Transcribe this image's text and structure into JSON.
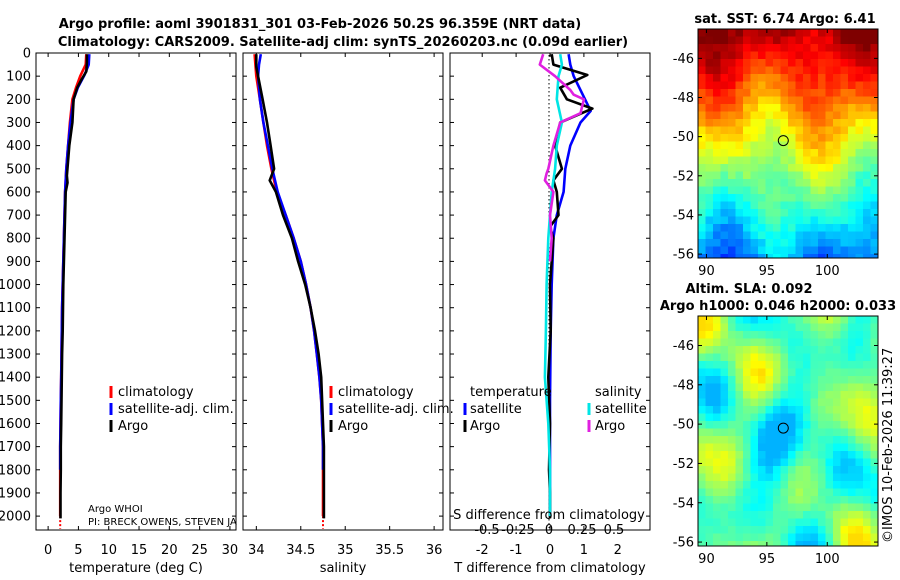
{
  "title": {
    "line1": "Argo profile: aoml 3901831_301 03-Feb-2026 50.2S 96.359E (NRT data)",
    "line2": "Climatology: CARS2009. Satellite-adj clim: synTS_20260203.nc (0.09d earlier)"
  },
  "credit": "©IMOS 10-Feb-2026 11:39:27",
  "colors": {
    "climatology": "#ff0000",
    "satellite_adj": "#0000ff",
    "argo": "#000000",
    "sat_salinity": "#00e5e5",
    "argo_salinity": "#e020e0"
  },
  "chart_data": [
    {
      "id": "temperature",
      "type": "line",
      "xlabel": "temperature (deg C)",
      "ylabel": "",
      "xlim": [
        -2,
        31
      ],
      "ylim": [
        2060,
        0
      ],
      "xticks": [
        0,
        5,
        10,
        15,
        20,
        25,
        30
      ],
      "xtick_labels": [
        "0",
        "5",
        "10",
        "15",
        "20",
        "25",
        "30"
      ],
      "yticks": [
        0,
        100,
        200,
        300,
        400,
        500,
        600,
        700,
        800,
        900,
        1000,
        1100,
        1200,
        1300,
        1400,
        1500,
        1600,
        1700,
        1800,
        1900,
        2000
      ],
      "ytick_labels": [
        "0",
        "100",
        "200",
        "300",
        "400",
        "500",
        "600",
        "700",
        "800",
        "900",
        "1000",
        "1100",
        "1200",
        "1300",
        "1400",
        "1500",
        "1600",
        "1700",
        "1800",
        "1900",
        "2000"
      ],
      "legend": [
        "climatology",
        "satellite-adj. clim.",
        "Argo"
      ],
      "annotation": [
        "Argo WHOI",
        "PI: BRECK OWENS, STEVEN JA"
      ],
      "series": [
        {
          "name": "climatology",
          "color": "#ff0000",
          "dashed": false,
          "x": [
            6.3,
            6.2,
            5.3,
            4.6,
            4.0,
            3.6,
            3.3,
            3.0,
            2.8,
            2.7,
            2.6,
            2.5,
            2.4,
            2.3,
            2.25,
            2.2,
            2.15,
            2.1,
            2.05,
            2.0,
            2.0,
            2.0,
            2.0
          ],
          "y": [
            5,
            50,
            100,
            150,
            200,
            300,
            400,
            500,
            600,
            700,
            800,
            900,
            1000,
            1100,
            1200,
            1300,
            1400,
            1500,
            1600,
            1700,
            1800,
            1900,
            2000
          ]
        },
        {
          "name": "climatology (lower)",
          "color": "#ff0000",
          "dashed": true,
          "x": [
            2.0,
            2.0
          ],
          "y": [
            2000,
            2055
          ]
        },
        {
          "name": "satellite-adj. clim.",
          "color": "#0000ff",
          "dashed": false,
          "x": [
            6.8,
            6.7,
            6.0,
            4.9,
            4.2,
            3.7,
            3.3,
            3.0,
            2.8,
            2.7,
            2.6,
            2.5,
            2.4,
            2.3,
            2.25,
            2.2,
            2.15,
            2.1,
            2.05,
            2.0,
            2.0
          ],
          "y": [
            5,
            50,
            95,
            150,
            200,
            300,
            400,
            500,
            600,
            700,
            800,
            900,
            1000,
            1100,
            1200,
            1300,
            1400,
            1500,
            1600,
            1700,
            1800
          ]
        },
        {
          "name": "Argo",
          "color": "#000000",
          "dashed": false,
          "x": [
            6.4,
            6.4,
            6.3,
            5.6,
            4.8,
            4.2,
            4.0,
            3.5,
            3.1,
            3.2,
            2.9,
            2.8,
            2.7,
            2.6,
            2.5,
            2.45,
            2.4,
            2.3,
            2.25,
            2.2,
            2.15,
            2.1,
            2.1,
            2.05,
            2.05,
            2.05
          ],
          "y": [
            5,
            40,
            80,
            110,
            150,
            200,
            300,
            400,
            530,
            560,
            600,
            700,
            800,
            900,
            1000,
            1100,
            1200,
            1300,
            1400,
            1500,
            1600,
            1700,
            1800,
            1900,
            2000,
            2010
          ]
        }
      ]
    },
    {
      "id": "salinity",
      "type": "line",
      "xlabel": "salinity",
      "xlim": [
        33.85,
        36.1
      ],
      "ylim": [
        2060,
        0
      ],
      "xticks": [
        34,
        34.5,
        35,
        35.5,
        36
      ],
      "xtick_labels": [
        "34",
        "34.5",
        "35",
        "35.5",
        "36"
      ],
      "legend": [
        "climatology",
        "satellite-adj. clim.",
        "Argo"
      ],
      "series": [
        {
          "name": "climatology",
          "color": "#ff0000",
          "dashed": false,
          "x": [
            33.98,
            33.99,
            34.0,
            34.04,
            34.08,
            34.12,
            34.17,
            34.23,
            34.33,
            34.42,
            34.5,
            34.56,
            34.61,
            34.65,
            34.68,
            34.71,
            34.73,
            34.74,
            34.75,
            34.75,
            34.75,
            34.75
          ],
          "y": [
            5,
            50,
            100,
            200,
            300,
            400,
            500,
            600,
            700,
            800,
            900,
            1000,
            1100,
            1200,
            1300,
            1400,
            1500,
            1600,
            1700,
            1800,
            1900,
            2000
          ]
        },
        {
          "name": "climatology (lower)",
          "color": "#ff0000",
          "dashed": true,
          "x": [
            34.75,
            34.75
          ],
          "y": [
            2000,
            2055
          ]
        },
        {
          "name": "satellite-adj. clim.",
          "color": "#0000ff",
          "dashed": false,
          "x": [
            34.05,
            34.03,
            34.02,
            34.04,
            34.08,
            34.13,
            34.18,
            34.24,
            34.33,
            34.42,
            34.5,
            34.56,
            34.61,
            34.65,
            34.68,
            34.71,
            34.73,
            34.74,
            34.75,
            34.75
          ],
          "y": [
            5,
            50,
            100,
            200,
            300,
            400,
            500,
            600,
            700,
            800,
            900,
            1000,
            1100,
            1200,
            1300,
            1400,
            1500,
            1600,
            1700,
            1800
          ]
        },
        {
          "name": "Argo",
          "color": "#000000",
          "dashed": false,
          "x": [
            34.0,
            34.0,
            34.02,
            34.07,
            34.12,
            34.16,
            34.2,
            34.15,
            34.22,
            34.3,
            34.4,
            34.47,
            34.55,
            34.61,
            34.66,
            34.7,
            34.73,
            34.74,
            34.75,
            34.76,
            34.76,
            34.76
          ],
          "y": [
            5,
            60,
            100,
            200,
            300,
            400,
            500,
            550,
            600,
            700,
            800,
            900,
            1000,
            1100,
            1200,
            1300,
            1400,
            1500,
            1600,
            1700,
            1900,
            2010
          ]
        }
      ]
    },
    {
      "id": "difference",
      "type": "line",
      "xlabel": "T difference from climatology",
      "top_xlabel": "S difference from climatology",
      "xlim": [
        -2.95,
        2.95
      ],
      "ylim": [
        2060,
        0
      ],
      "xticks": [
        -2,
        -1,
        0,
        1,
        2
      ],
      "xtick_labels": [
        "-2",
        "-1",
        "0",
        "1",
        "2"
      ],
      "top_xtick_labels": [
        "-0.5",
        "-0.25",
        "0",
        "0.25",
        "0.5"
      ],
      "s_scale": 0.25,
      "legend_groups": [
        {
          "title": "temperature",
          "items": [
            "satellite",
            "Argo"
          ]
        },
        {
          "title": "salinity",
          "items": [
            "satellite",
            "Argo"
          ]
        }
      ],
      "series": [
        {
          "name": "T satellite",
          "color": "#0000ff",
          "dashed": false,
          "x": [
            0.55,
            0.6,
            0.7,
            1.2,
            0.9,
            0.6,
            0.45,
            0.4,
            0.2,
            0.1,
            0.05,
            0.02,
            0.0,
            0.0,
            0.0
          ],
          "y": [
            5,
            50,
            100,
            250,
            300,
            400,
            500,
            600,
            700,
            800,
            1000,
            1200,
            1500,
            1800,
            2000
          ]
        },
        {
          "name": "T Argo",
          "color": "#000000",
          "dashed": false,
          "x": [
            0.05,
            0.1,
            1.1,
            0.3,
            0.5,
            1.25,
            0.3,
            0.15,
            0.35,
            0.1,
            0.2,
            0.25,
            0.0,
            0.1,
            0.05,
            0.0,
            0.02,
            -0.05,
            0.0,
            -0.03,
            0.0,
            0.0
          ],
          "y": [
            5,
            50,
            95,
            150,
            200,
            240,
            300,
            400,
            500,
            550,
            600,
            700,
            750,
            800,
            900,
            1000,
            1200,
            1400,
            1600,
            1800,
            1900,
            2010
          ]
        },
        {
          "name": "S satellite",
          "color": "#00e5e5",
          "dashed": false,
          "x": [
            0.3,
            0.35,
            0.25,
            0.2,
            0.35,
            0.2,
            0.15,
            0.05,
            0.0,
            -0.05,
            -0.1,
            -0.12,
            -0.15,
            -0.1,
            -0.05,
            0.0,
            0.0
          ],
          "y": [
            5,
            50,
            100,
            200,
            300,
            400,
            500,
            600,
            700,
            800,
            1000,
            1200,
            1400,
            1500,
            1600,
            1800,
            2000
          ]
        },
        {
          "name": "S Argo",
          "color": "#e020e0",
          "dashed": false,
          "x": [
            -0.2,
            -0.3,
            0.15,
            0.6,
            0.7,
            1.0,
            0.9,
            0.3,
            0.1,
            -0.05,
            -0.1,
            -0.15,
            0.1,
            0.0,
            0.05,
            0.0
          ],
          "y": [
            5,
            50,
            100,
            160,
            180,
            200,
            260,
            300,
            400,
            500,
            520,
            550,
            600,
            700,
            800,
            900
          ]
        }
      ]
    },
    {
      "id": "sst_map",
      "type": "heatmap",
      "title": "sat. SST: 6.74 Argo: 6.41",
      "xlim": [
        89.3,
        104.2
      ],
      "ylim": [
        -56.2,
        -44.5
      ],
      "xticks": [
        90,
        95,
        100
      ],
      "yticks": [
        -46,
        -48,
        -50,
        -52,
        -54,
        -56
      ],
      "xtick_labels": [
        "90",
        "95",
        "100"
      ],
      "ytick_labels": [
        "-46",
        "-48",
        "-50",
        "-52",
        "-54",
        "-56"
      ],
      "marker": {
        "lon": 96.36,
        "lat": -50.2
      }
    },
    {
      "id": "sla_map",
      "type": "heatmap",
      "title": "Altim. SLA: 0.092",
      "subtitle": "Argo h1000: 0.046 h2000: 0.033",
      "xlim": [
        89.3,
        104.2
      ],
      "ylim": [
        -56.2,
        -44.5
      ],
      "xticks": [
        90,
        95,
        100
      ],
      "yticks": [
        -46,
        -48,
        -50,
        -52,
        -54,
        -56
      ],
      "xtick_labels": [
        "90",
        "95",
        "100"
      ],
      "ytick_labels": [
        "-46",
        "-48",
        "-50",
        "-52",
        "-54",
        "-56"
      ],
      "marker": {
        "lon": 96.36,
        "lat": -50.2
      }
    }
  ]
}
